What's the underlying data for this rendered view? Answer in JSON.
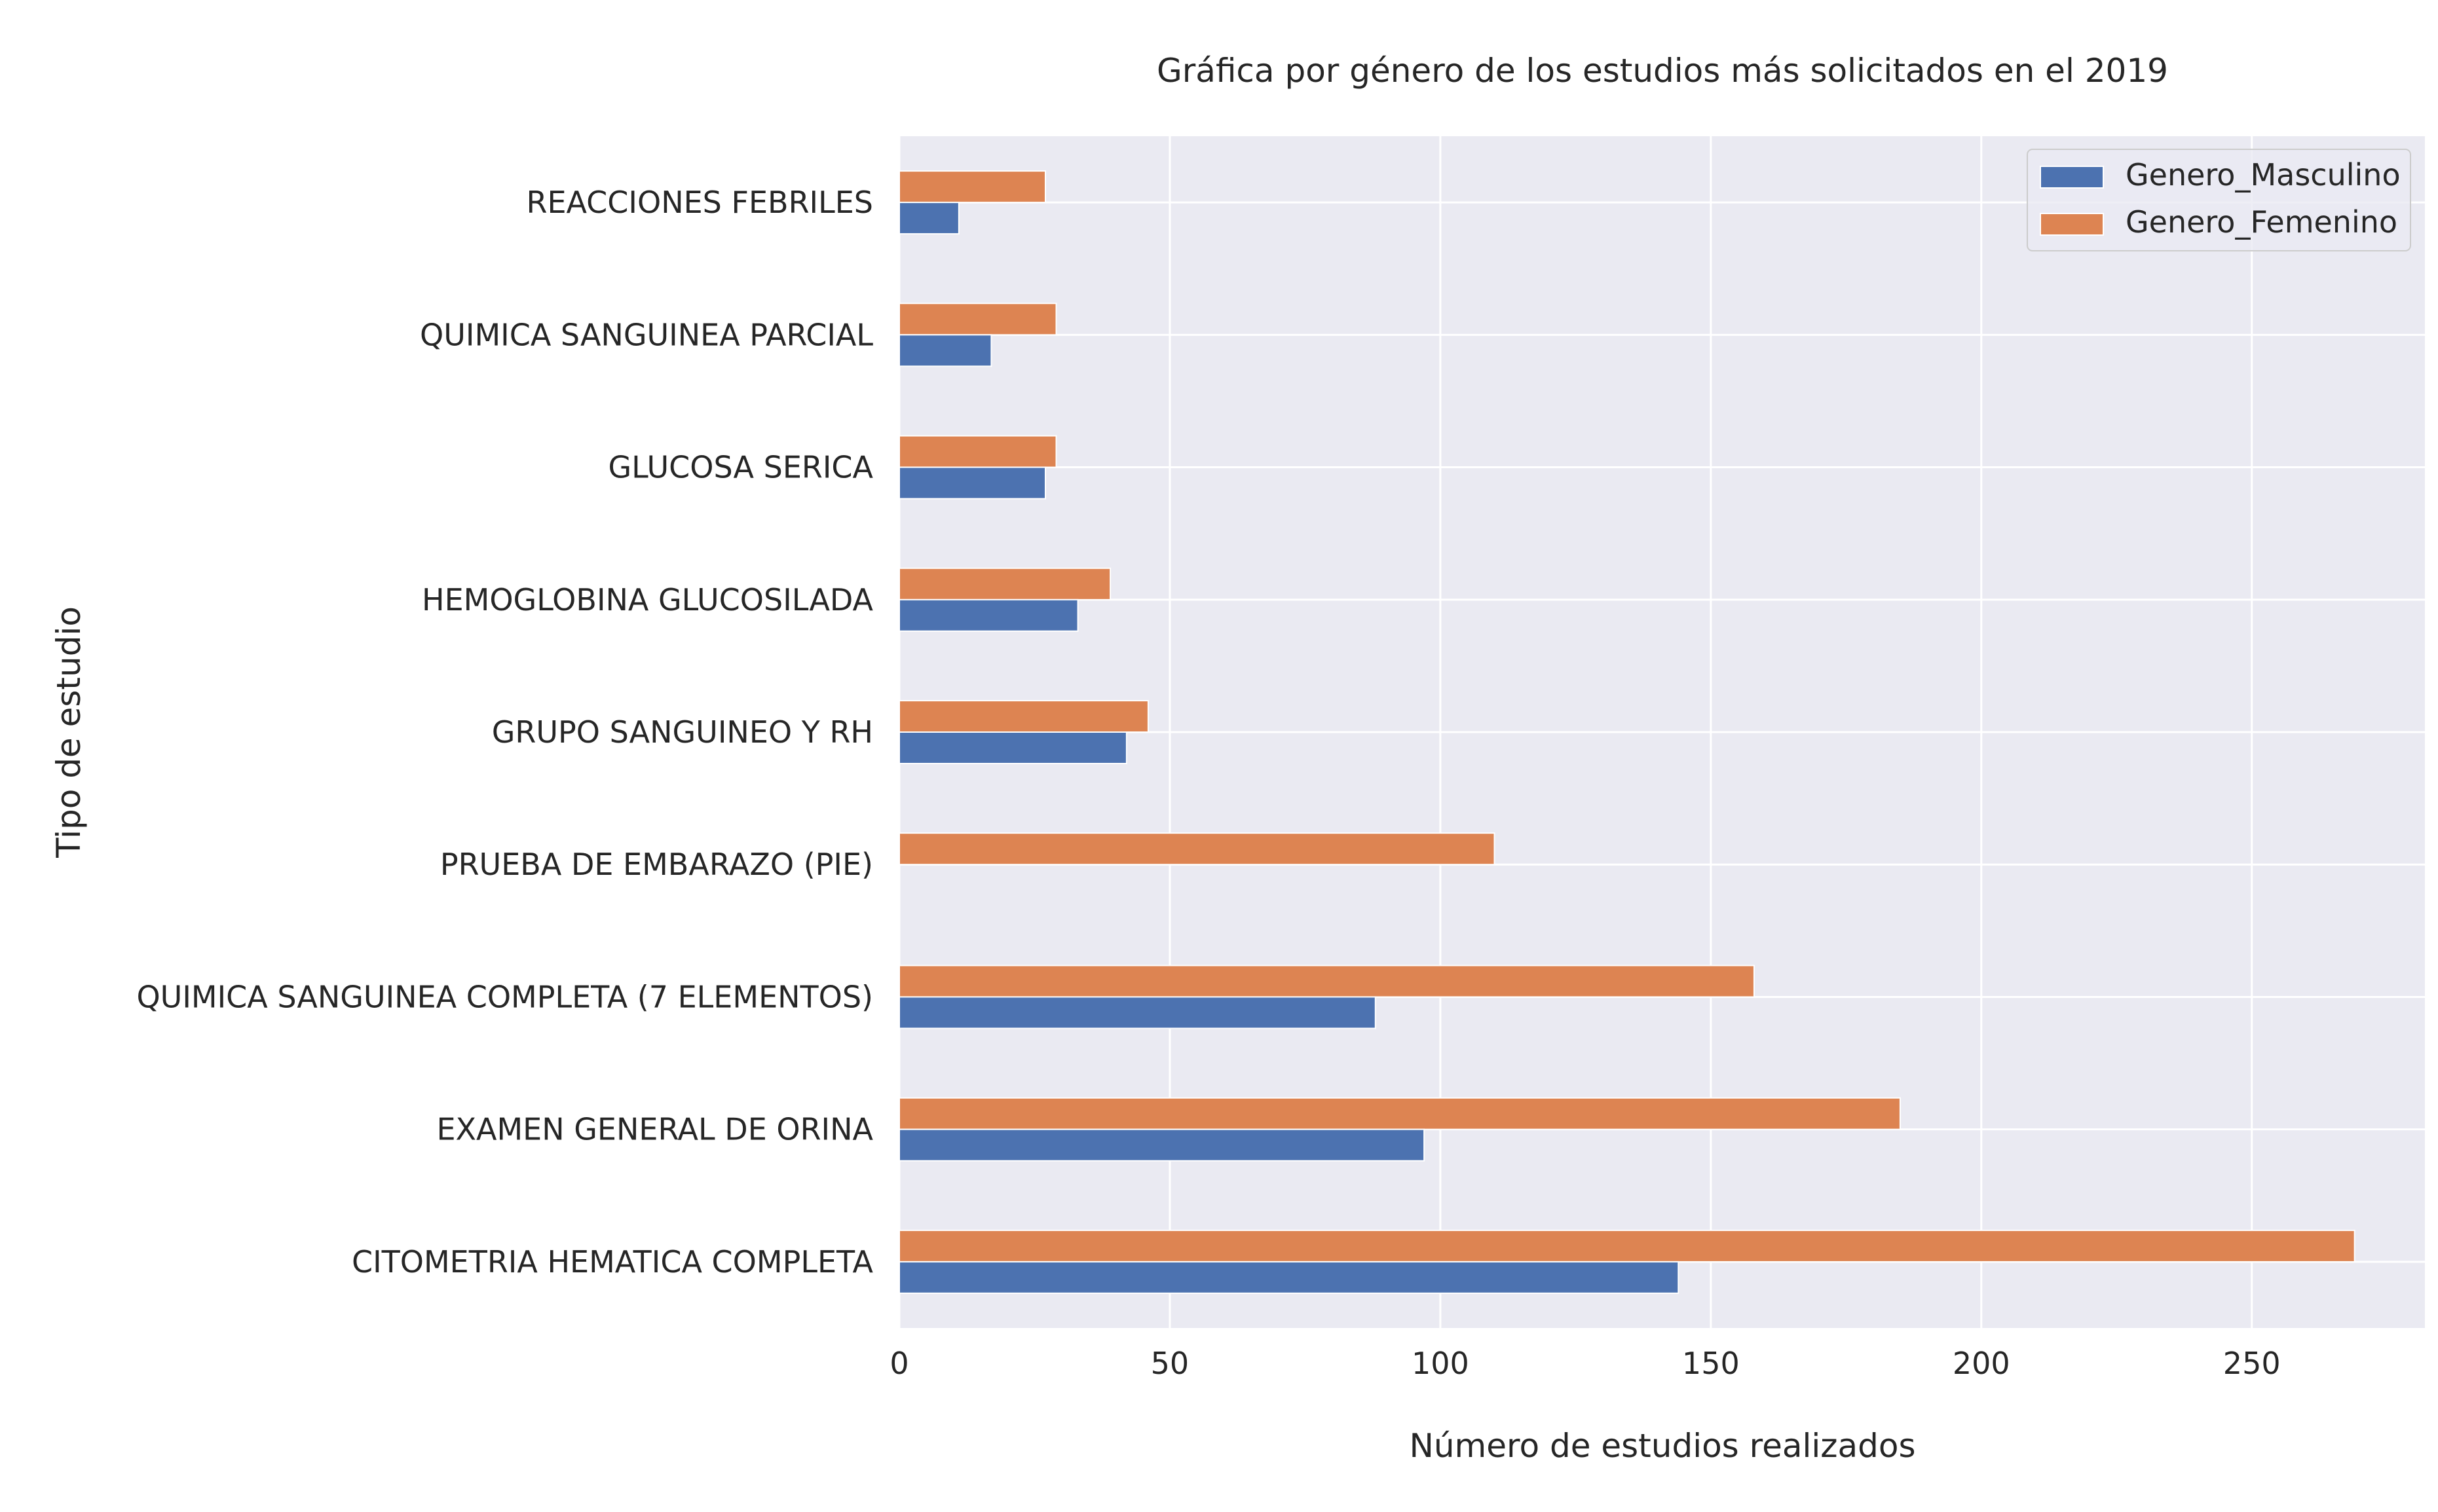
{
  "chart_data": {
    "type": "bar",
    "orientation": "horizontal",
    "title": "Gráfica por género de los estudios más solicitados en el 2019",
    "xlabel": "Número de estudios realizados",
    "ylabel": "Tipo de estudio",
    "categories": [
      "CITOMETRIA HEMATICA COMPLETA",
      "EXAMEN GENERAL DE ORINA",
      "QUIMICA SANGUINEA COMPLETA (7 ELEMENTOS)",
      "PRUEBA DE EMBARAZO (PIE)",
      "GRUPO SANGUINEO Y RH",
      "HEMOGLOBINA GLUCOSILADA",
      "GLUCOSA SERICA",
      "QUIMICA SANGUINEA PARCIAL",
      "REACCIONES FEBRILES"
    ],
    "series": [
      {
        "name": "Genero_Masculino",
        "color": "#4c72b0",
        "values": [
          144,
          97,
          88,
          0,
          42,
          33,
          27,
          17,
          11
        ]
      },
      {
        "name": "Genero_Femenino",
        "color": "#dd8452",
        "values": [
          269,
          185,
          158,
          110,
          46,
          39,
          29,
          29,
          27
        ]
      }
    ],
    "xlim": [
      0,
      282
    ],
    "xticks": [
      0,
      50,
      100,
      150,
      200,
      250
    ],
    "grid": true,
    "legend_position": "top-right",
    "background_color": "#eaeaf2"
  }
}
